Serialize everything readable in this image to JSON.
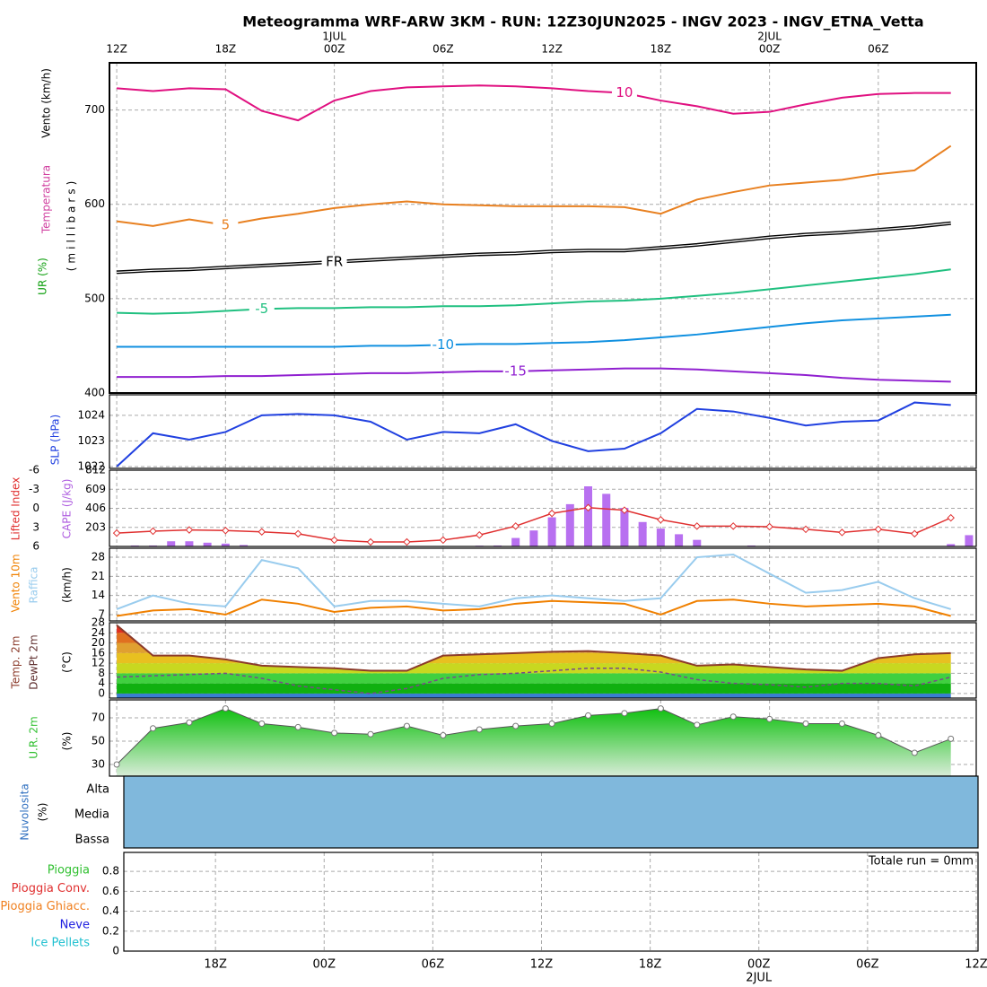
{
  "title": "Meteogramma WRF-ARW 3KM - RUN: 12Z30JUN2025 - INGV 2023 - INGV_ETNA_Vetta",
  "time_axis": {
    "xlim": [
      -0.4,
      47.4
    ],
    "xticks": [
      {
        "value": 0,
        "label": "12Z"
      },
      {
        "value": 6,
        "label": "18Z"
      },
      {
        "value": 12,
        "label": "00Z"
      },
      {
        "value": 18,
        "label": "06Z"
      },
      {
        "value": 24,
        "label": "12Z"
      },
      {
        "value": 30,
        "label": "18Z"
      },
      {
        "value": 36,
        "label": "00Z"
      },
      {
        "value": 42,
        "label": "06Z"
      }
    ],
    "day_labels": [
      {
        "value": 12,
        "label": "1JUL"
      },
      {
        "value": 36,
        "label": "2JUL"
      }
    ]
  },
  "chart_data": [
    {
      "type": "contour",
      "labels": [
        "Vento (km/h)",
        "Temperatura",
        "UR (%)",
        "(millibars)"
      ],
      "ylim": [
        400,
        750
      ],
      "yticks": [
        400,
        500,
        600,
        700
      ],
      "grid": true,
      "series": [
        {
          "name": "-15",
          "color": "#9020d0",
          "x": [
            0,
            2,
            4,
            6,
            8,
            10,
            12,
            14,
            16,
            18,
            20,
            22,
            24,
            26,
            28,
            30,
            32,
            34,
            36,
            38,
            40,
            42,
            44,
            46
          ],
          "values": [
            417,
            417,
            417,
            418,
            418,
            419,
            420,
            421,
            421,
            422,
            423,
            423,
            424,
            425,
            426,
            426,
            425,
            423,
            421,
            419,
            416,
            414,
            413,
            412
          ]
        },
        {
          "name": "-10",
          "color": "#1090e0",
          "x": [
            0,
            2,
            4,
            6,
            8,
            10,
            12,
            14,
            16,
            18,
            20,
            22,
            24,
            26,
            28,
            30,
            32,
            34,
            36,
            38,
            40,
            42,
            44,
            46
          ],
          "values": [
            449,
            449,
            449,
            449,
            449,
            449,
            449,
            450,
            450,
            451,
            452,
            452,
            453,
            454,
            456,
            459,
            462,
            466,
            470,
            474,
            477,
            479,
            481,
            483
          ]
        },
        {
          "name": "-5",
          "color": "#20c080",
          "x": [
            0,
            2,
            4,
            6,
            8,
            10,
            12,
            14,
            16,
            18,
            20,
            22,
            24,
            26,
            28,
            30,
            32,
            34,
            36,
            38,
            40,
            42,
            44,
            46
          ],
          "values": [
            485,
            484,
            485,
            487,
            489,
            490,
            490,
            491,
            491,
            492,
            492,
            493,
            495,
            497,
            498,
            500,
            503,
            506,
            510,
            514,
            518,
            522,
            526,
            531
          ]
        },
        {
          "name": "FR",
          "color": "#000000",
          "x": [
            0,
            2,
            4,
            6,
            8,
            10,
            12,
            14,
            16,
            18,
            20,
            22,
            24,
            26,
            28,
            30,
            32,
            34,
            36,
            38,
            40,
            42,
            44,
            46
          ],
          "values": [
            528,
            530,
            531,
            533,
            535,
            537,
            539,
            541,
            543,
            545,
            547,
            548,
            550,
            551,
            551,
            554,
            557,
            561,
            565,
            568,
            570,
            573,
            576,
            580
          ]
        },
        {
          "name": "5",
          "color": "#e88020",
          "x": [
            0,
            2,
            4,
            6,
            8,
            10,
            12,
            14,
            16,
            18,
            20,
            22,
            24,
            26,
            28,
            30,
            32,
            34,
            36,
            38,
            40,
            42,
            44,
            46
          ],
          "values": [
            582,
            577,
            584,
            578,
            585,
            590,
            596,
            600,
            603,
            600,
            599,
            598,
            598,
            598,
            597,
            590,
            605,
            613,
            620,
            623,
            626,
            632,
            636,
            662
          ]
        },
        {
          "name": "10",
          "color": "#e01080",
          "x": [
            0,
            2,
            4,
            6,
            8,
            10,
            12,
            14,
            16,
            18,
            20,
            22,
            24,
            26,
            28,
            30,
            32,
            34,
            36,
            38,
            40,
            42,
            44,
            46
          ],
          "values": [
            723,
            720,
            723,
            722,
            699,
            689,
            710,
            720,
            724,
            725,
            726,
            725,
            723,
            720,
            718,
            710,
            704,
            696,
            698,
            706,
            713,
            717,
            718,
            718
          ]
        }
      ]
    },
    {
      "type": "line",
      "labels": [
        "SLP (hPa)"
      ],
      "ylim": [
        1021.93,
        1024.8
      ],
      "yticks": [
        1022,
        1023,
        1024
      ],
      "grid": true,
      "series": [
        {
          "name": "SLP",
          "color": "#2040e0",
          "x": [
            0,
            2,
            4,
            6,
            8,
            10,
            12,
            14,
            16,
            18,
            20,
            22,
            24,
            26,
            28,
            30,
            32,
            34,
            36,
            38,
            40,
            42,
            44,
            46
          ],
          "values": [
            1022.0,
            1023.3,
            1023.05,
            1023.35,
            1024.0,
            1024.05,
            1024.0,
            1023.75,
            1023.05,
            1023.35,
            1023.3,
            1023.65,
            1023.0,
            1022.6,
            1022.7,
            1023.3,
            1024.25,
            1024.15,
            1023.9,
            1023.6,
            1023.75,
            1023.8,
            1024.5,
            1024.4
          ]
        }
      ]
    },
    {
      "type": "cape",
      "labels": [
        "Lifted Index",
        "CAPE (J/kg)"
      ],
      "ylim": [
        6,
        -6
      ],
      "yticks": [
        -6,
        -3,
        0,
        3,
        6
      ],
      "y2lim": [
        0,
        812
      ],
      "y2ticks": [
        203,
        406,
        609,
        812
      ],
      "grid": true,
      "series": [
        {
          "name": "CAPE",
          "axis": "y2",
          "color": "#b870f0",
          "x": [
            0,
            1,
            2,
            3,
            4,
            5,
            6,
            7,
            8,
            9,
            10,
            11,
            12,
            13,
            14,
            15,
            16,
            17,
            18,
            19,
            20,
            21,
            22,
            23,
            24,
            25,
            26,
            27,
            28,
            29,
            30,
            31,
            32,
            33,
            34,
            35,
            36,
            37,
            38,
            39,
            40,
            41,
            42,
            43,
            44,
            45,
            46,
            47
          ],
          "values": [
            0,
            10,
            10,
            55,
            55,
            40,
            30,
            15,
            0,
            0,
            0,
            0,
            0,
            0,
            0,
            0,
            0,
            0,
            0,
            0,
            8,
            10,
            90,
            170,
            310,
            450,
            640,
            560,
            410,
            260,
            190,
            130,
            70,
            0,
            0,
            10,
            5,
            0,
            0,
            0,
            0,
            0,
            0,
            0,
            0,
            0,
            25,
            120
          ]
        },
        {
          "name": "Lifted Index",
          "color": "#e03030",
          "x": [
            0,
            2,
            4,
            6,
            8,
            10,
            12,
            14,
            16,
            18,
            20,
            22,
            24,
            26,
            28,
            30,
            32,
            34,
            36,
            38,
            40,
            42,
            44,
            46
          ],
          "values": [
            3.9,
            3.6,
            3.4,
            3.5,
            3.7,
            4.0,
            5.0,
            5.3,
            5.3,
            5.0,
            4.2,
            2.8,
            0.8,
            -0.1,
            0.3,
            1.8,
            2.8,
            2.8,
            2.9,
            3.3,
            3.8,
            3.3,
            4.0,
            1.5
          ]
        }
      ]
    },
    {
      "type": "line",
      "labels": [
        "Vento 10m",
        "Raffica",
        "(km/h)"
      ],
      "ylim": [
        4.7,
        31.3
      ],
      "yticks": [
        7,
        14,
        21,
        28
      ],
      "grid": true,
      "series": [
        {
          "name": "Raffica",
          "color": "#99ccee",
          "x": [
            0,
            2,
            4,
            6,
            8,
            10,
            12,
            14,
            16,
            18,
            20,
            22,
            24,
            26,
            28,
            30,
            32,
            34,
            36,
            38,
            40,
            42,
            44,
            46
          ],
          "values": [
            9,
            14,
            11,
            10,
            27,
            24,
            10,
            12,
            12,
            11,
            10,
            13,
            14,
            13,
            12,
            13,
            28,
            29,
            22,
            15,
            16,
            19,
            13,
            9
          ]
        },
        {
          "name": "Vento 10m",
          "color": "#f08000",
          "x": [
            0,
            2,
            4,
            6,
            8,
            10,
            12,
            14,
            16,
            18,
            20,
            22,
            24,
            26,
            28,
            30,
            32,
            34,
            36,
            38,
            40,
            42,
            44,
            46
          ],
          "values": [
            6.5,
            8.5,
            9,
            7,
            12.5,
            11,
            8,
            9.5,
            10,
            8.5,
            9,
            11,
            12,
            11.5,
            11,
            7,
            12,
            12.5,
            11,
            10,
            10.5,
            11,
            10,
            6.5
          ]
        }
      ]
    },
    {
      "type": "temperature",
      "labels": [
        "Temp. 2m",
        "DewPt 2m",
        "(°C)"
      ],
      "ylim": [
        -1.8,
        28
      ],
      "yticks": [
        0,
        4,
        8,
        12,
        16,
        20,
        24,
        28
      ],
      "grid": true,
      "band_colors": [
        "#3a7fd0",
        "#10b010",
        "#40d040",
        "#c8d820",
        "#e8c020",
        "#e0a030",
        "#e07020",
        "#e03020"
      ],
      "series": [
        {
          "name": "Temp. 2m",
          "color": "#8b3a2a",
          "x": [
            0,
            2,
            4,
            6,
            8,
            10,
            12,
            14,
            16,
            18,
            20,
            22,
            24,
            26,
            28,
            30,
            32,
            34,
            36,
            38,
            40,
            42,
            44,
            46
          ],
          "values": [
            27,
            15,
            15,
            13.5,
            11,
            10.5,
            10,
            9,
            9,
            15,
            15.5,
            16,
            16.5,
            16.8,
            16,
            15,
            11,
            11.5,
            10.5,
            9.5,
            9,
            14,
            15.5,
            16
          ]
        },
        {
          "name": "DewPt 2m",
          "color": "#7a4a8a",
          "x": [
            0,
            2,
            4,
            6,
            8,
            10,
            12,
            14,
            16,
            18,
            20,
            22,
            24,
            26,
            28,
            30,
            32,
            34,
            36,
            38,
            40,
            42,
            44,
            46
          ],
          "values": [
            6.5,
            7,
            7.5,
            8,
            6,
            3,
            1.5,
            0,
            2,
            6,
            7.5,
            8,
            9,
            10,
            10,
            8.5,
            5.5,
            4,
            3.5,
            2.5,
            4,
            4,
            3,
            6.5
          ]
        }
      ]
    },
    {
      "type": "area",
      "labels": [
        "U.R. 2m",
        "(%)"
      ],
      "ylim": [
        20,
        85.4
      ],
      "yticks": [
        30,
        50,
        70
      ],
      "grid": true,
      "series": [
        {
          "name": "U.R. 2m",
          "color": "#30c030",
          "x": [
            0,
            2,
            4,
            6,
            8,
            10,
            12,
            14,
            16,
            18,
            20,
            22,
            24,
            26,
            28,
            30,
            32,
            34,
            36,
            38,
            40,
            42,
            44,
            46
          ],
          "values": [
            30,
            61,
            66,
            78,
            65,
            62,
            57,
            56,
            63,
            55,
            60,
            63,
            65,
            72,
            74,
            78,
            64,
            71,
            69,
            65,
            65,
            55,
            40,
            52
          ]
        }
      ]
    },
    {
      "type": "cloud",
      "labels": [
        "Nuvolosita",
        "(%)"
      ],
      "levels": [
        "Alta",
        "Media",
        "Bassa"
      ],
      "color": "#80b8dc"
    },
    {
      "type": "precip",
      "legend": [
        {
          "name": "Pioggia",
          "color": "#30c030"
        },
        {
          "name": "Pioggia Conv.",
          "color": "#e03030"
        },
        {
          "name": "Pioggia Ghiacc.",
          "color": "#f08020"
        },
        {
          "name": "Neve",
          "color": "#2020e0"
        },
        {
          "name": "Ice Pellets",
          "color": "#20c0d0"
        }
      ],
      "total": "Totale run = 0mm",
      "xlim": [
        0.94,
        48.1
      ],
      "ylim": [
        0,
        0.99
      ],
      "yticks": [
        0,
        0.2,
        0.4,
        0.6,
        0.8
      ],
      "grid": true,
      "xticks": [
        {
          "value": 6,
          "label": "18Z"
        },
        {
          "value": 12,
          "label": "00Z"
        },
        {
          "value": 18,
          "label": "06Z"
        },
        {
          "value": 24,
          "label": "12Z"
        },
        {
          "value": 30,
          "label": "18Z"
        },
        {
          "value": 36,
          "label": "00Z"
        },
        {
          "value": 42,
          "label": "06Z"
        },
        {
          "value": 48,
          "label": "12Z"
        }
      ],
      "day_labels": [
        {
          "value": 36,
          "label": "2JUL"
        }
      ]
    }
  ]
}
